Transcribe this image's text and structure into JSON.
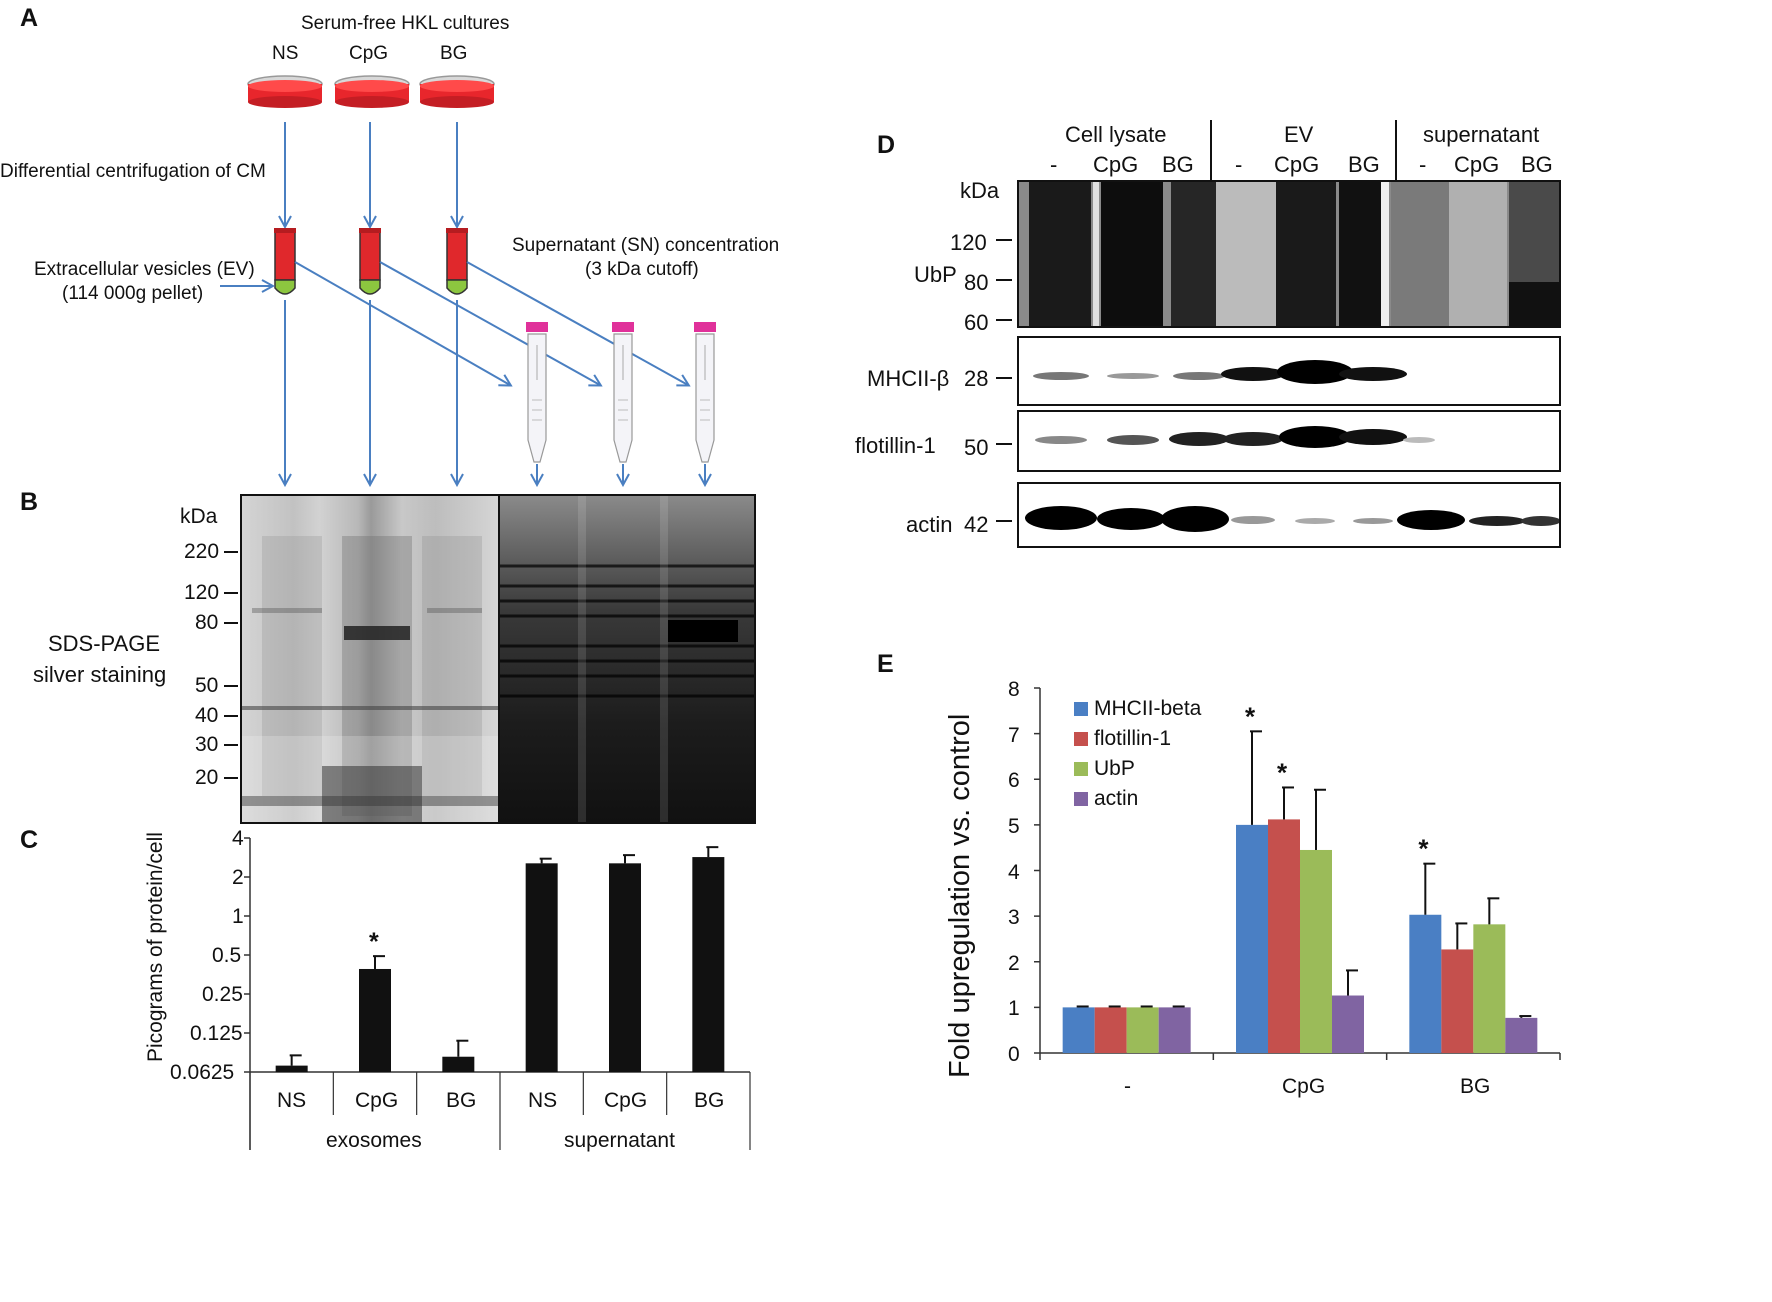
{
  "panels": {
    "A": "A",
    "B": "B",
    "C": "C",
    "D": "D",
    "E": "E"
  },
  "panelA": {
    "title": "Serum-free HKL cultures",
    "cultures": [
      "NS",
      "CpG",
      "BG"
    ],
    "step1": "Differential centrifugation of CM",
    "ev_line1": "Extracellular vesicles (EV)",
    "ev_line2": "(114 000g pellet)",
    "sn_line1": "Supernatant  (SN) concentration",
    "sn_line2": "(3 kDa cutoff)",
    "colors": {
      "dish_medium": "#e8262c",
      "tube_red": "#e0282c",
      "tube_green": "#8cc63f",
      "cap_pink": "#e0319a",
      "arrow": "#4a7fc1"
    }
  },
  "panelB": {
    "kda_label": "kDa",
    "markers": [
      "220",
      "120",
      "80",
      "50",
      "40",
      "30",
      "20"
    ],
    "side_line1": "SDS-PAGE",
    "side_line2": "silver staining"
  },
  "panelC": {
    "ylabel": "Picograms of protein/cell",
    "yticks": [
      "4",
      "2",
      "1",
      "0.5",
      "0.25",
      "0.125",
      "0.0625"
    ],
    "categories": [
      "NS",
      "CpG",
      "BG",
      "NS",
      "CpG",
      "BG"
    ],
    "groups": [
      "exosomes",
      "supernatant"
    ],
    "star": "*"
  },
  "panelD": {
    "headers": [
      "Cell lysate",
      "EV",
      "supernatant"
    ],
    "lanes": [
      "-",
      "CpG",
      "BG",
      "-",
      "CpG",
      "BG",
      "-",
      "CpG",
      "BG"
    ],
    "kda_label": "kDa",
    "ubp_label": "UbP",
    "ubp_markers": [
      "120",
      "80",
      "60"
    ],
    "rows": [
      {
        "name": "MHCII-β",
        "kda": "28"
      },
      {
        "name": "flotillin-1",
        "kda": "50"
      },
      {
        "name": "actin",
        "kda": "42"
      }
    ]
  },
  "panelE": {
    "ylabel": "Fold upregulation vs. control",
    "yticks": [
      "0",
      "1",
      "2",
      "3",
      "4",
      "5",
      "6",
      "7",
      "8"
    ],
    "categories": [
      "-",
      "CpG",
      "BG"
    ],
    "star": "*"
  },
  "chart_data": [
    {
      "type": "bar",
      "panel": "C",
      "ylabel": "Picograms of protein/cell",
      "yscale": "log2",
      "ylim": [
        0.0625,
        4
      ],
      "categories": [
        "NS",
        "CpG",
        "BG",
        "NS",
        "CpG",
        "BG"
      ],
      "groups": [
        {
          "label": "exosomes",
          "categories": [
            "NS",
            "CpG",
            "BG"
          ]
        },
        {
          "label": "supernatant",
          "categories": [
            "NS",
            "CpG",
            "BG"
          ]
        }
      ],
      "values": [
        0.07,
        0.39,
        0.082,
        2.55,
        2.55,
        2.85
      ],
      "errors": [
        0.014,
        0.1,
        0.027,
        0.22,
        0.4,
        0.55
      ],
      "significant": [
        false,
        true,
        false,
        false,
        false,
        false
      ],
      "color": "#111111"
    },
    {
      "type": "bar",
      "panel": "E",
      "ylabel": "Fold upregulation vs. control",
      "ylim": [
        0,
        8
      ],
      "categories": [
        "-",
        "CpG",
        "BG"
      ],
      "series": [
        {
          "name": "MHCII-beta",
          "color": "#4a7fc4",
          "values": [
            1.0,
            5.0,
            3.03
          ],
          "errors": [
            0.02,
            2.05,
            1.12
          ],
          "significant": [
            false,
            true,
            true
          ]
        },
        {
          "name": "flotillin-1",
          "color": "#c5504d",
          "values": [
            1.0,
            5.12,
            2.27
          ],
          "errors": [
            0.02,
            0.7,
            0.57
          ],
          "significant": [
            false,
            true,
            false
          ]
        },
        {
          "name": "UbP",
          "color": "#9bbb59",
          "values": [
            1.0,
            4.45,
            2.82
          ],
          "errors": [
            0.02,
            1.32,
            0.57
          ],
          "significant": [
            false,
            false,
            false
          ]
        },
        {
          "name": "actin",
          "color": "#8064a2",
          "values": [
            1.0,
            1.26,
            0.77
          ],
          "errors": [
            0.02,
            0.55,
            0.04
          ],
          "significant": [
            false,
            false,
            false
          ]
        }
      ],
      "legend": "top-left"
    }
  ]
}
